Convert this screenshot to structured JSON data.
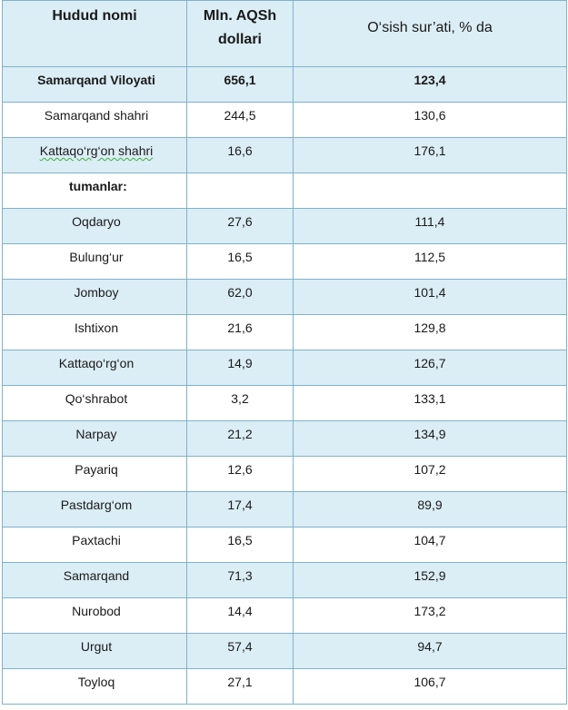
{
  "table": {
    "headers": {
      "region": "Hudud nomi",
      "value_line1": "Mln. AQSh",
      "value_line2": "dollari",
      "growth": "O‘sish sur’ati, % da"
    },
    "rows": [
      {
        "name": "Samarqand Viloyati",
        "value": "656,1",
        "growth": "123,4",
        "shaded": true,
        "bold": true
      },
      {
        "name": "Samarqand  shahri",
        "value": "244,5",
        "growth": "130,6",
        "shaded": false,
        "bold": false
      },
      {
        "name": "Kattaqo‘rg‘on  shahri",
        "value": "16,6",
        "growth": "176,1",
        "shaded": true,
        "bold": false,
        "spellcheck_mark": true
      },
      {
        "name": "tumanlar:",
        "value": "",
        "growth": "",
        "shaded": false,
        "bold": true,
        "subheading": true
      },
      {
        "name": "Oqdaryo",
        "value": "27,6",
        "growth": "111,4",
        "shaded": true,
        "bold": false
      },
      {
        "name": "Bulung‘ur",
        "value": "16,5",
        "growth": "112,5",
        "shaded": false,
        "bold": false
      },
      {
        "name": "Jomboy",
        "value": "62,0",
        "growth": "101,4",
        "shaded": true,
        "bold": false
      },
      {
        "name": "Ishtixon",
        "value": "21,6",
        "growth": "129,8",
        "shaded": false,
        "bold": false
      },
      {
        "name": "Kattaqo‘rg‘on",
        "value": "14,9",
        "growth": "126,7",
        "shaded": true,
        "bold": false
      },
      {
        "name": "Qo‘shrabot",
        "value": "3,2",
        "growth": "133,1",
        "shaded": false,
        "bold": false
      },
      {
        "name": "Narpay",
        "value": "21,2",
        "growth": "134,9",
        "shaded": true,
        "bold": false
      },
      {
        "name": "Payariq",
        "value": "12,6",
        "growth": "107,2",
        "shaded": false,
        "bold": false
      },
      {
        "name": "Pastdarg‘om",
        "value": "17,4",
        "growth": "89,9",
        "shaded": true,
        "bold": false
      },
      {
        "name": "Paxtachi",
        "value": "16,5",
        "growth": "104,7",
        "shaded": false,
        "bold": false
      },
      {
        "name": "Samarqand",
        "value": "71,3",
        "growth": "152,9",
        "shaded": true,
        "bold": false
      },
      {
        "name": "Nurobod",
        "value": "14,4",
        "growth": "173,2",
        "shaded": false,
        "bold": false
      },
      {
        "name": "Urgut",
        "value": "57,4",
        "growth": "94,7",
        "shaded": true,
        "bold": false
      },
      {
        "name": "Toyloq",
        "value": "27,1",
        "growth": "106,7",
        "shaded": false,
        "bold": false
      }
    ]
  },
  "colors": {
    "shade": "#dbedf5",
    "border": "#7fb2cc",
    "spellcheck": "#3fae3f"
  }
}
